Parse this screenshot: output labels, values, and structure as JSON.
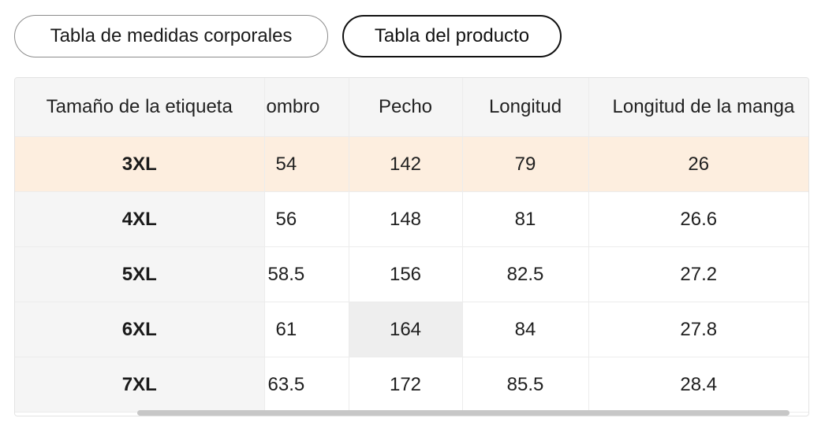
{
  "tabs": {
    "body_chart_label": "Tabla de medidas corporales",
    "product_chart_label": "Tabla del producto"
  },
  "table": {
    "headers": {
      "size": "Tamaño de la etiqueta",
      "shoulder": "ombro",
      "chest": "Pecho",
      "length": "Longitud",
      "sleeve": "Longitud de la manga"
    },
    "rows": [
      {
        "size": "3XL",
        "shoulder": "54",
        "chest": "142",
        "length": "79",
        "sleeve": "26"
      },
      {
        "size": "4XL",
        "shoulder": "56",
        "chest": "148",
        "length": "81",
        "sleeve": "26.6"
      },
      {
        "size": "5XL",
        "shoulder": "58.5",
        "chest": "156",
        "length": "82.5",
        "sleeve": "27.2"
      },
      {
        "size": "6XL",
        "shoulder": "61",
        "chest": "164",
        "length": "84",
        "sleeve": "27.8"
      },
      {
        "size": "7XL",
        "shoulder": "63.5",
        "chest": "172",
        "length": "85.5",
        "sleeve": "28.4"
      }
    ]
  },
  "colors": {
    "highlight_row": "#fdeedf",
    "header_bg": "#f5f5f5",
    "hover_cell": "#eeeeee"
  }
}
